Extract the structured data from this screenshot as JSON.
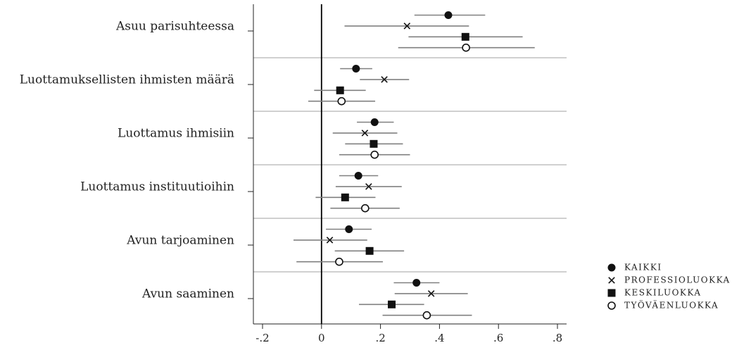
{
  "chart_data": {
    "type": "scatter",
    "subtype": "forest-plot",
    "title": "",
    "xlabel": "",
    "ylabel": "",
    "xlim": [
      -0.2,
      0.8
    ],
    "xticks": [
      -0.2,
      0,
      0.2,
      0.4,
      0.6,
      0.8
    ],
    "xtick_labels": [
      "-.2",
      "0",
      ".2",
      ".4",
      ".6",
      ".8"
    ],
    "reference_line": 0,
    "grid": false,
    "legend_position": "bottom-right",
    "categories": [
      "Asuu parisuhteessa",
      "Luottamuksellisten ihmisten määrä",
      "Luottamus ihmisiin",
      "Luottamus instituutioihin",
      "Avun tarjoaminen",
      "Avun saaminen"
    ],
    "series": [
      {
        "name": "KAIKKI",
        "marker": "filled-circle",
        "estimates": [
          0.43,
          0.117,
          0.18,
          0.125,
          0.093,
          0.322
        ],
        "ci_low": [
          0.315,
          0.063,
          0.12,
          0.06,
          0.015,
          0.245
        ],
        "ci_high": [
          0.555,
          0.172,
          0.245,
          0.192,
          0.17,
          0.4
        ]
      },
      {
        "name": "PROFESSIOLUOKKA",
        "marker": "cross",
        "estimates": [
          0.29,
          0.213,
          0.147,
          0.16,
          0.028,
          0.372
        ],
        "ci_low": [
          0.078,
          0.13,
          0.038,
          0.048,
          -0.095,
          0.248
        ],
        "ci_high": [
          0.5,
          0.297,
          0.257,
          0.272,
          0.155,
          0.496
        ]
      },
      {
        "name": "KESKILUOKKA",
        "marker": "filled-square",
        "estimates": [
          0.488,
          0.063,
          0.177,
          0.08,
          0.163,
          0.238
        ],
        "ci_low": [
          0.295,
          -0.025,
          0.08,
          -0.02,
          0.045,
          0.127
        ],
        "ci_high": [
          0.682,
          0.15,
          0.276,
          0.183,
          0.28,
          0.348
        ]
      },
      {
        "name": "TYÖVÄENLUOKKA",
        "marker": "hollow-circle",
        "estimates": [
          0.49,
          0.068,
          0.18,
          0.148,
          0.06,
          0.357
        ],
        "ci_low": [
          0.26,
          -0.045,
          0.06,
          0.03,
          -0.085,
          0.207
        ],
        "ci_high": [
          0.723,
          0.182,
          0.3,
          0.265,
          0.208,
          0.51
        ]
      }
    ],
    "colors": {
      "marker": "#111111",
      "ci_line": "#808080",
      "separator": "#a0a0a0",
      "axis": "#222222"
    }
  }
}
